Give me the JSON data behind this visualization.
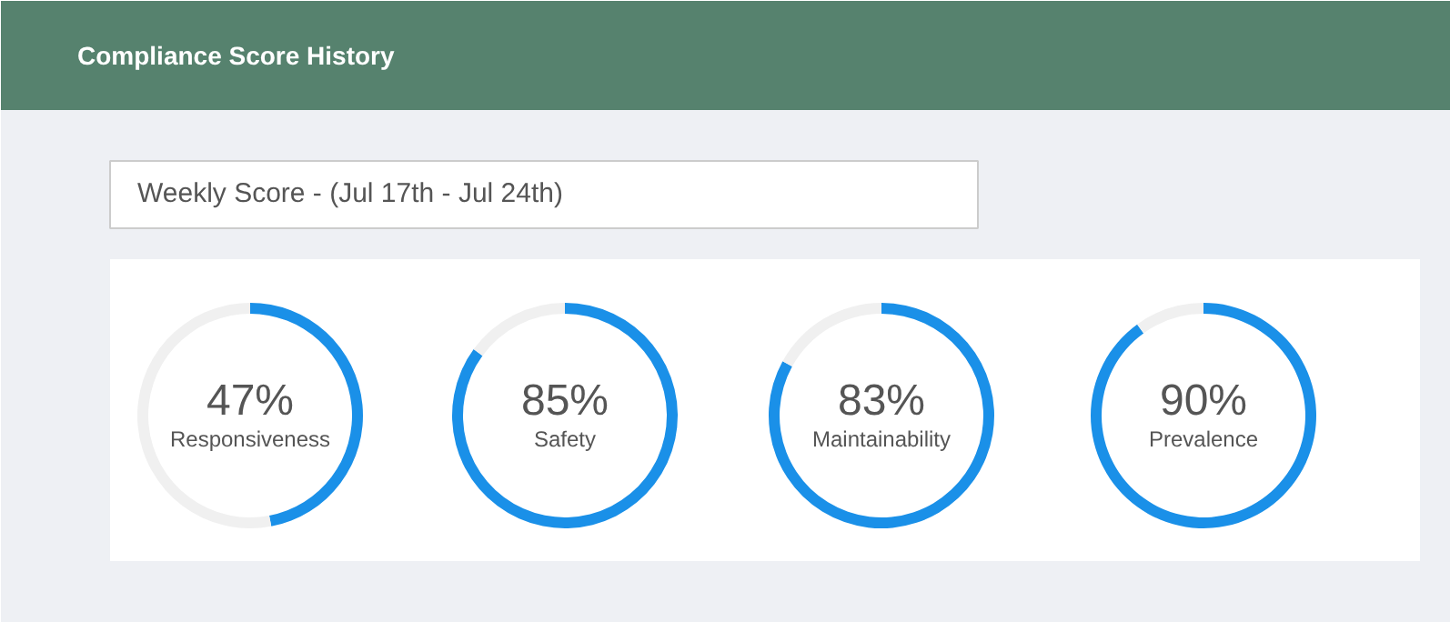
{
  "chart_data": [
    {
      "type": "other",
      "title": "Compliance Score History",
      "subtitle": "Weekly Score - (Jul 17th - Jul 24th)"
    },
    {
      "type": "donut",
      "title": "Responsiveness",
      "categories": [
        null,
        null
      ],
      "values": [
        47,
        53
      ],
      "colors": [
        "#1a90e8",
        "#f0f0f0"
      ],
      "value_labels": [
        "47%",
        null
      ]
    },
    {
      "type": "donut",
      "title": "Safety",
      "categories": [
        null,
        null
      ],
      "values": [
        85,
        15
      ],
      "colors": [
        "#1a90e8",
        "#f0f0f0"
      ],
      "value_labels": [
        "85%",
        null
      ]
    },
    {
      "type": "donut",
      "title": "Maintainability",
      "categories": [
        null,
        null
      ],
      "values": [
        83,
        17
      ],
      "colors": [
        "#1a90e8",
        "#f0f0f0"
      ],
      "value_labels": [
        "83%",
        null
      ]
    },
    {
      "type": "donut",
      "title": "Prevalence",
      "categories": [
        null,
        null
      ],
      "values": [
        90,
        10
      ],
      "colors": [
        "#1a90e8",
        "#f0f0f0"
      ],
      "value_labels": [
        "90%",
        null
      ]
    }
  ]
}
